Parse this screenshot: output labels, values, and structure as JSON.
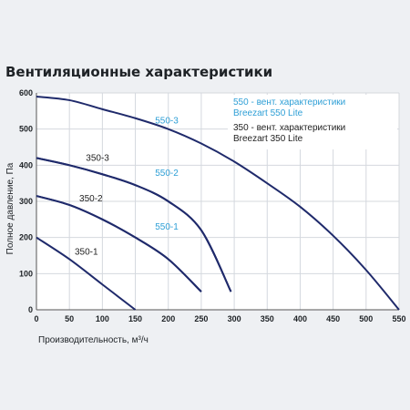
{
  "chart_data": {
    "type": "line",
    "title": "Вентиляционные характеристики",
    "xlabel": "Производительность, м³/ч",
    "ylabel": "Полное давление, Па",
    "xlim": [
      0,
      550
    ],
    "ylim": [
      0,
      600
    ],
    "x_ticks": [
      "0",
      "50",
      "100",
      "150",
      "200",
      "250",
      "300",
      "350",
      "400",
      "450",
      "500",
      "550"
    ],
    "y_ticks": [
      "0",
      "100",
      "200",
      "300",
      "400",
      "500",
      "600"
    ],
    "grid": true,
    "colors": {
      "curve": "#1f2a6b",
      "label_550": "#2e9fd6",
      "label_350": "#222222",
      "grid": "#d4d8de",
      "plot_bg": "#ffffff",
      "legend_bg": "#ffffff"
    },
    "series": [
      {
        "name": "550-3",
        "x": [
          0,
          50,
          100,
          150,
          200,
          250,
          300,
          350,
          400,
          450,
          500,
          550
        ],
        "y": [
          590,
          580,
          555,
          530,
          500,
          460,
          410,
          350,
          285,
          205,
          110,
          0
        ]
      },
      {
        "name": "550-2",
        "x": [
          0,
          50,
          100,
          150,
          200,
          250,
          295
        ],
        "y": [
          420,
          400,
          375,
          345,
          300,
          220,
          50
        ]
      },
      {
        "name": "550-1",
        "x": [
          0,
          50,
          100,
          150,
          200,
          250
        ],
        "y": [
          315,
          290,
          250,
          200,
          140,
          50
        ]
      },
      {
        "name": "350-3",
        "x": [
          0,
          50,
          100,
          150,
          200,
          250,
          295
        ],
        "y": [
          420,
          400,
          375,
          345,
          300,
          220,
          50
        ]
      },
      {
        "name": "350-2",
        "x": [
          0,
          50,
          100,
          150,
          200,
          250
        ],
        "y": [
          315,
          290,
          250,
          200,
          140,
          50
        ]
      },
      {
        "name": "350-1",
        "x": [
          0,
          50,
          100,
          150
        ],
        "y": [
          200,
          140,
          70,
          0
        ]
      }
    ],
    "series_labels": [
      {
        "text": "550-3",
        "x": 180,
        "y": 515,
        "group": "550"
      },
      {
        "text": "550-2",
        "x": 180,
        "y": 370,
        "group": "550"
      },
      {
        "text": "550-1",
        "x": 180,
        "y": 222,
        "group": "550"
      },
      {
        "text": "350-3",
        "x": 75,
        "y": 412,
        "group": "350"
      },
      {
        "text": "350-2",
        "x": 65,
        "y": 300,
        "group": "350"
      },
      {
        "text": "350-1",
        "x": 58,
        "y": 153,
        "group": "350"
      }
    ],
    "legend": {
      "placement": "top-right",
      "entries": [
        {
          "line1": "550 - вент. характеристики",
          "line2": "Breezart 550 Lite",
          "group": "550"
        },
        {
          "line1": "350 - вент. характеристики",
          "line2": "Breezart 350 Lite",
          "group": "350"
        }
      ]
    }
  }
}
